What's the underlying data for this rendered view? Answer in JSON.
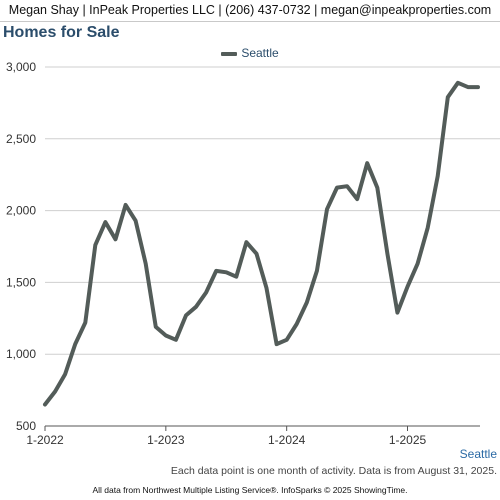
{
  "header": {
    "contact": "Megan Shay | InPeak Properties LLC | (206) 437-0732 | megan@inpeakproperties.com"
  },
  "colors": {
    "series": "#535c59",
    "title": "#2b4d6b",
    "gridline": "#cfcfcf",
    "series_label": "#2b6aa5"
  },
  "chart_data": {
    "type": "line",
    "title": "Homes for Sale",
    "legend": [
      "Seattle"
    ],
    "legend_position": "top-center",
    "grid": true,
    "ylim": [
      500,
      3000
    ],
    "yticks": [
      "500",
      "1,000",
      "1,500",
      "2,000",
      "2,500",
      "3,000"
    ],
    "ytick_values": [
      500,
      1000,
      1500,
      2000,
      2500,
      3000
    ],
    "xticks": [
      "1-2022",
      "1-2023",
      "1-2024",
      "1-2025"
    ],
    "x": [
      "1-2022",
      "2-2022",
      "3-2022",
      "4-2022",
      "5-2022",
      "6-2022",
      "7-2022",
      "8-2022",
      "9-2022",
      "10-2022",
      "11-2022",
      "12-2022",
      "1-2023",
      "2-2023",
      "3-2023",
      "4-2023",
      "5-2023",
      "6-2023",
      "7-2023",
      "8-2023",
      "9-2023",
      "10-2023",
      "11-2023",
      "12-2023",
      "1-2024",
      "2-2024",
      "3-2024",
      "4-2024",
      "5-2024",
      "6-2024",
      "7-2024",
      "8-2024",
      "9-2024",
      "10-2024",
      "11-2024",
      "12-2024",
      "1-2025",
      "2-2025",
      "3-2025",
      "4-2025",
      "5-2025",
      "6-2025",
      "7-2025",
      "8-2025"
    ],
    "series": [
      {
        "name": "Seattle",
        "values": [
          650,
          740,
          860,
          1070,
          1220,
          1760,
          1920,
          1800,
          2040,
          1930,
          1630,
          1190,
          1130,
          1100,
          1270,
          1330,
          1430,
          1580,
          1570,
          1540,
          1780,
          1700,
          1460,
          1070,
          1100,
          1210,
          1360,
          1580,
          2010,
          2160,
          2170,
          2080,
          2330,
          2160,
          1700,
          1290,
          1470,
          1630,
          1880,
          2240,
          2790,
          2890,
          2860,
          2860
        ]
      }
    ]
  },
  "footer": {
    "series_label": "Seattle",
    "note": "Each data point is one month of activity. Data is from August 31, 2025.",
    "source": "All data from Northwest Multiple Listing Service®. InfoSparks © 2025 ShowingTime."
  }
}
